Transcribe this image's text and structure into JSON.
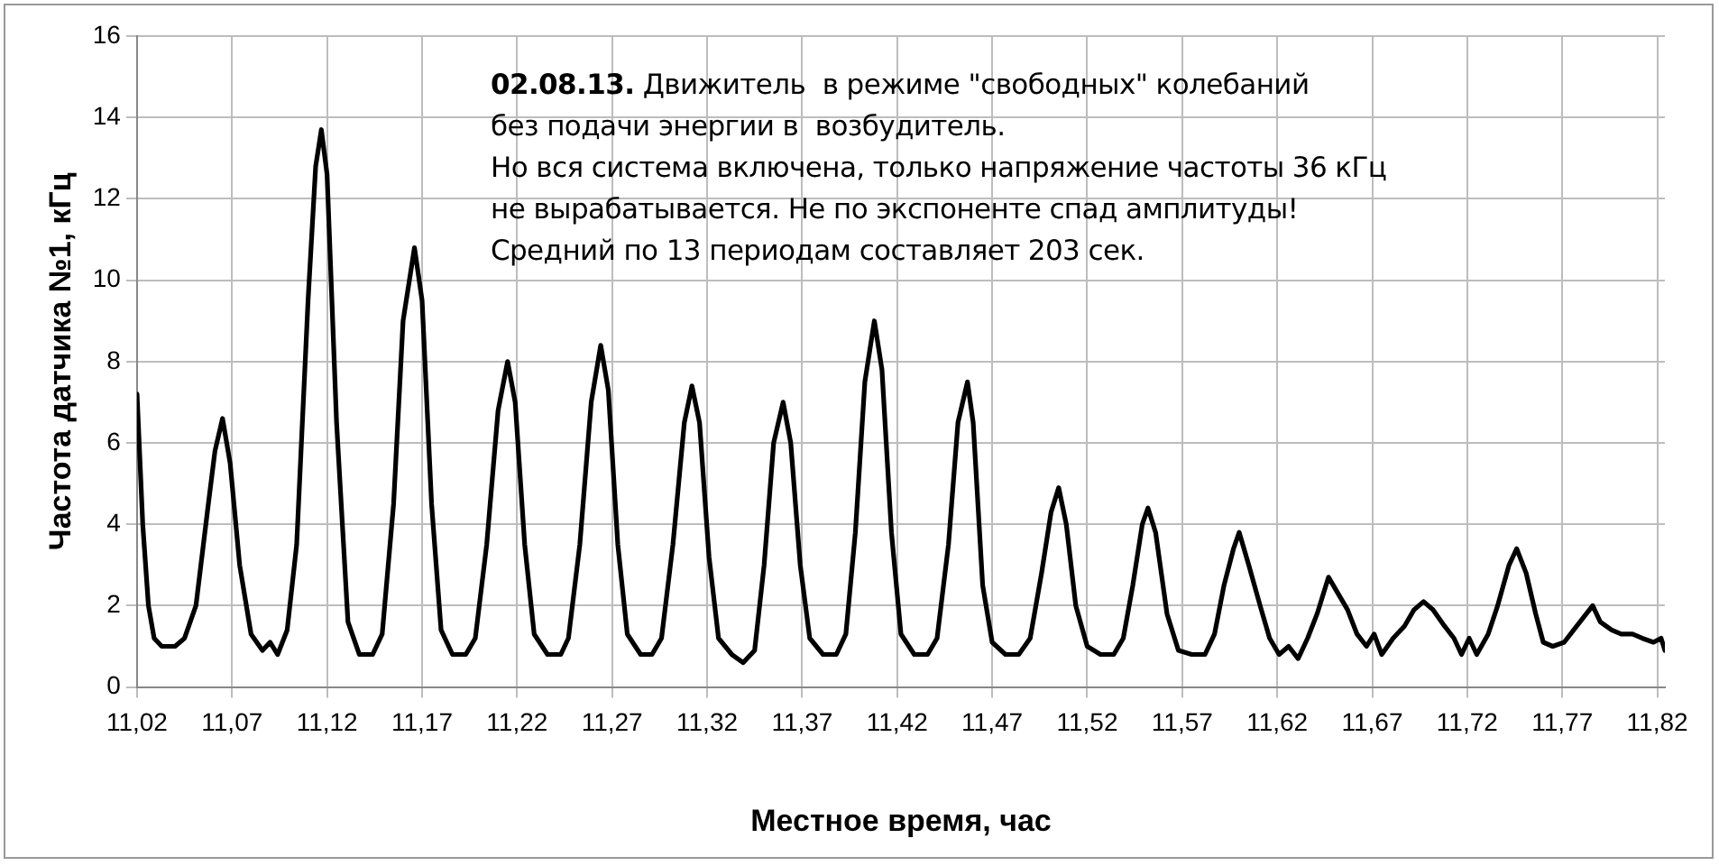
{
  "chart_data": {
    "type": "line",
    "xlabel": "Местное время, час",
    "ylabel": "Частота датчика №1, кГц",
    "annotations": [
      "02.08.13.",
      "Движитель  в режиме \"свободных\" колебаний",
      "без подачи энергии в  возбудитель.",
      "Но вся система включена, только напряжение частоты 36 кГц",
      "не вырабатывается. Не по экспоненте спад амплитуды!",
      "Средний по 13 периодам составляет 203 сек."
    ],
    "series": [
      {
        "color": "#000000",
        "x": [
          11.02,
          11.023,
          11.026,
          11.029,
          11.033,
          11.04,
          11.045,
          11.051,
          11.057,
          11.061,
          11.065,
          11.069,
          11.074,
          11.08,
          11.086,
          11.09,
          11.094,
          11.099,
          11.104,
          11.11,
          11.114,
          11.117,
          11.12,
          11.125,
          11.131,
          11.137,
          11.144,
          11.149,
          11.155,
          11.16,
          11.166,
          11.17,
          11.175,
          11.18,
          11.186,
          11.193,
          11.198,
          11.204,
          11.21,
          11.215,
          11.219,
          11.224,
          11.229,
          11.236,
          11.243,
          11.247,
          11.253,
          11.259,
          11.264,
          11.268,
          11.273,
          11.278,
          11.285,
          11.291,
          11.296,
          11.302,
          11.308,
          11.312,
          11.316,
          11.321,
          11.326,
          11.333,
          11.339,
          11.345,
          11.35,
          11.355,
          11.36,
          11.364,
          11.369,
          11.374,
          11.381,
          11.388,
          11.393,
          11.398,
          11.403,
          11.408,
          11.412,
          11.417,
          11.422,
          11.429,
          11.436,
          11.441,
          11.447,
          11.452,
          11.457,
          11.46,
          11.465,
          11.47,
          11.477,
          11.484,
          11.49,
          11.496,
          11.501,
          11.505,
          11.509,
          11.514,
          11.52,
          11.527,
          11.534,
          11.539,
          11.544,
          11.549,
          11.552,
          11.556,
          11.562,
          11.568,
          11.575,
          11.582,
          11.587,
          11.592,
          11.597,
          11.6,
          11.605,
          11.611,
          11.616,
          11.621,
          11.626,
          11.631,
          11.636,
          11.641,
          11.647,
          11.652,
          11.657,
          11.662,
          11.667,
          11.671,
          11.675,
          11.681,
          11.687,
          11.692,
          11.697,
          11.702,
          11.708,
          11.713,
          11.717,
          11.721,
          11.725,
          11.731,
          11.736,
          11.742,
          11.746,
          11.751,
          11.756,
          11.76,
          11.765,
          11.771,
          11.776,
          11.781,
          11.786,
          11.79,
          11.796,
          11.801,
          11.807,
          11.812,
          11.818,
          11.822,
          11.824
        ],
        "values": [
          7.2,
          4.0,
          2.0,
          1.2,
          1.0,
          1.0,
          1.2,
          2.0,
          4.3,
          5.8,
          6.6,
          5.5,
          3.0,
          1.3,
          0.9,
          1.1,
          0.8,
          1.4,
          3.5,
          9.5,
          12.8,
          13.7,
          12.6,
          6.5,
          1.6,
          0.8,
          0.8,
          1.3,
          4.5,
          9.0,
          10.8,
          9.5,
          4.5,
          1.4,
          0.8,
          0.8,
          1.2,
          3.5,
          6.8,
          8.0,
          7.0,
          3.5,
          1.3,
          0.8,
          0.8,
          1.2,
          3.5,
          7.0,
          8.4,
          7.3,
          3.5,
          1.3,
          0.8,
          0.8,
          1.2,
          3.5,
          6.5,
          7.4,
          6.5,
          3.2,
          1.2,
          0.8,
          0.6,
          0.9,
          3.0,
          6.0,
          7.0,
          6.0,
          3.0,
          1.2,
          0.8,
          0.8,
          1.3,
          3.8,
          7.5,
          9.0,
          7.8,
          3.8,
          1.3,
          0.8,
          0.8,
          1.2,
          3.5,
          6.5,
          7.5,
          6.5,
          2.5,
          1.1,
          0.8,
          0.8,
          1.2,
          2.8,
          4.3,
          4.9,
          4.0,
          2.0,
          1.0,
          0.8,
          0.8,
          1.2,
          2.5,
          4.0,
          4.4,
          3.8,
          1.8,
          0.9,
          0.8,
          0.8,
          1.3,
          2.5,
          3.4,
          3.8,
          3.0,
          2.0,
          1.2,
          0.8,
          1.0,
          0.7,
          1.2,
          1.8,
          2.7,
          2.3,
          1.9,
          1.3,
          1.0,
          1.3,
          0.8,
          1.2,
          1.5,
          1.9,
          2.1,
          1.9,
          1.5,
          1.2,
          0.8,
          1.2,
          0.8,
          1.3,
          2.0,
          3.0,
          3.4,
          2.8,
          1.8,
          1.1,
          1.0,
          1.1,
          1.4,
          1.7,
          2.0,
          1.6,
          1.4,
          1.3,
          1.3,
          1.2,
          1.1,
          1.2,
          0.9
        ]
      }
    ],
    "xlim": [
      11.02,
      11.824
    ],
    "xticks": [
      {
        "value": 11.02,
        "label": "11,02"
      },
      {
        "value": 11.07,
        "label": "11,07"
      },
      {
        "value": 11.12,
        "label": "11,12"
      },
      {
        "value": 11.17,
        "label": "11,17"
      },
      {
        "value": 11.22,
        "label": "11,22"
      },
      {
        "value": 11.27,
        "label": "11,27"
      },
      {
        "value": 11.32,
        "label": "11,32"
      },
      {
        "value": 11.37,
        "label": "11,37"
      },
      {
        "value": 11.42,
        "label": "11,42"
      },
      {
        "value": 11.47,
        "label": "11,47"
      },
      {
        "value": 11.52,
        "label": "11,52"
      },
      {
        "value": 11.57,
        "label": "11,57"
      },
      {
        "value": 11.62,
        "label": "11,62"
      },
      {
        "value": 11.67,
        "label": "11,67"
      },
      {
        "value": 11.72,
        "label": "11,72"
      },
      {
        "value": 11.77,
        "label": "11,77"
      },
      {
        "value": 11.82,
        "label": "11,82"
      }
    ],
    "ylim": [
      0,
      16
    ],
    "yticks": [
      0,
      2,
      4,
      6,
      8,
      10,
      12,
      14,
      16
    ],
    "grid": true,
    "legend": false,
    "marker": "none",
    "line_style": "solid"
  }
}
